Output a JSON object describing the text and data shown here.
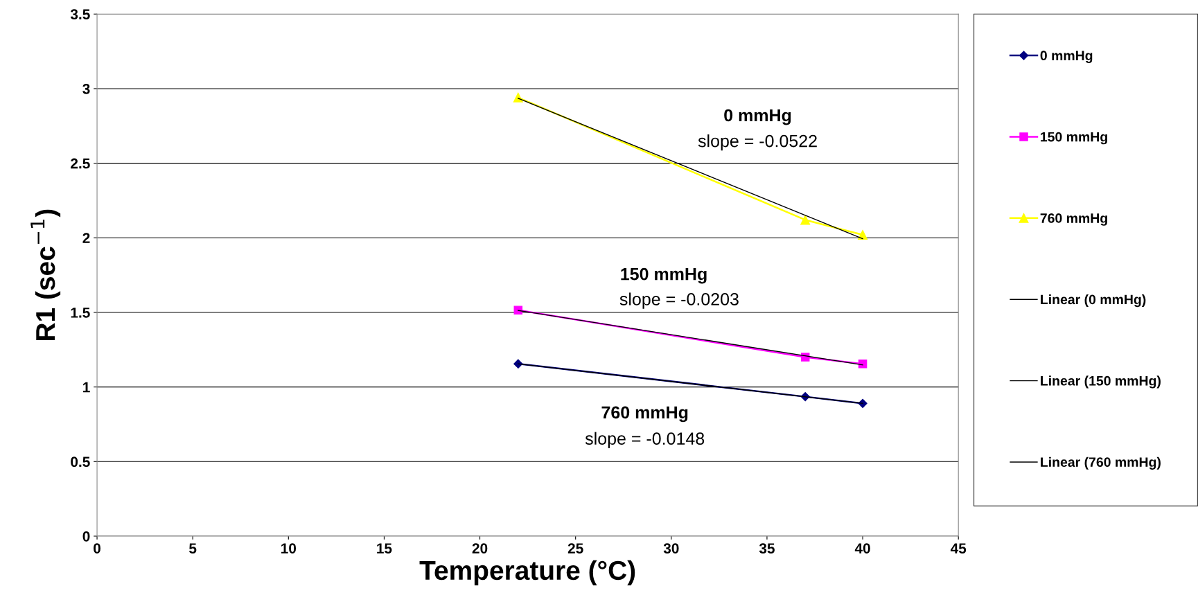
{
  "chart_data": {
    "type": "line",
    "xlabel": "Temperature (°C)",
    "ylabel": "R1 (sec$^{−1}$)",
    "xlim": [
      0,
      45
    ],
    "xticks": [
      0,
      5,
      10,
      15,
      20,
      25,
      30,
      35,
      40,
      45
    ],
    "ylim": [
      0,
      3.5
    ],
    "yticks": [
      0,
      0.5,
      1,
      1.5,
      2,
      2.5,
      3,
      3.5
    ],
    "grid": "y",
    "legend": "right",
    "line_style": "solid",
    "series": [
      {
        "name": "0 mmHg",
        "color": "#000080",
        "marker": "diamond",
        "x": [
          22,
          37,
          40
        ],
        "values": [
          1.155,
          0.935,
          0.89
        ]
      },
      {
        "name": "150 mmHg",
        "color": "#ff00ff",
        "marker": "square",
        "x": [
          22,
          37,
          40
        ],
        "values": [
          1.515,
          1.2,
          1.155
        ]
      },
      {
        "name": "760 mmHg",
        "color": "#ffff00",
        "marker": "triangle",
        "x": [
          22,
          37,
          40
        ],
        "values": [
          2.94,
          2.12,
          2.02
        ]
      },
      {
        "name": "Linear (0 mmHg)",
        "color": "#000000",
        "marker": "none",
        "x": [
          22,
          40
        ],
        "values": [
          1.155,
          0.89
        ]
      },
      {
        "name": "Linear (150 mmHg)",
        "color": "#000000",
        "marker": "none",
        "x": [
          22,
          40
        ],
        "values": [
          1.513,
          1.148
        ]
      },
      {
        "name": "Linear (760 mmHg)",
        "color": "#000000",
        "marker": "none",
        "x": [
          22,
          40
        ],
        "values": [
          2.935,
          1.994
        ]
      }
    ],
    "annotations": [
      "0 mmHg",
      "slope = -0.0522",
      "150 mmHg",
      "slope = -0.0203",
      "760 mmHg",
      "slope = -0.0148"
    ]
  }
}
